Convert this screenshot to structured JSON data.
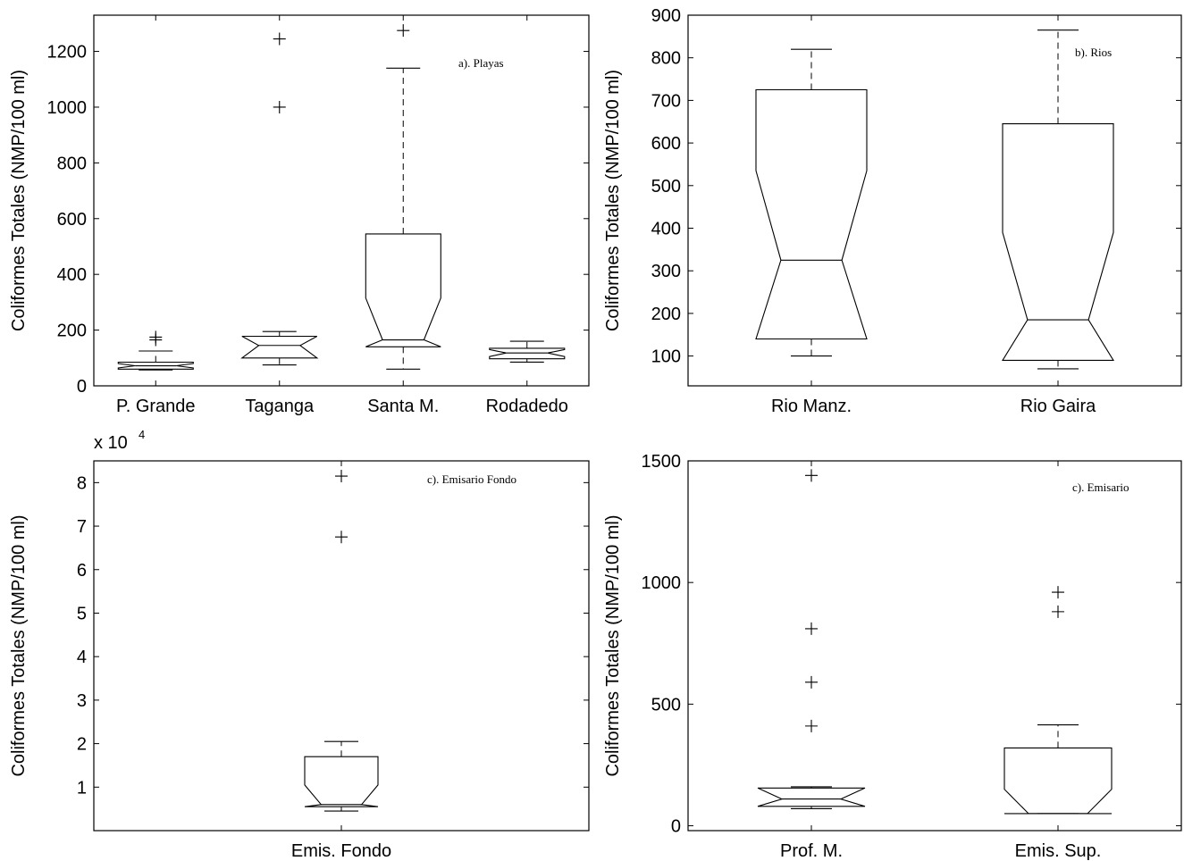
{
  "chart_data": [
    {
      "type": "box",
      "annotation": "a). Playas",
      "ylabel": "Coliformes Totales (NMP/100 ml)",
      "ylim": [
        0,
        1330
      ],
      "yticks": [
        0,
        200,
        400,
        600,
        800,
        1000,
        1200
      ],
      "ytick_labels": [
        "0",
        "200",
        "400",
        "600",
        "800",
        "1000",
        "1200"
      ],
      "multiplier": "",
      "categories": [
        "P. Grande",
        "Taganga",
        "Santa M.",
        "Rodadedo"
      ],
      "boxes": [
        {
          "q1": 60,
          "median": 72,
          "q3": 85,
          "notch_low": 64,
          "notch_high": 80,
          "whisker_low": 57,
          "whisker_high": 125,
          "outliers": [
            165,
            175
          ]
        },
        {
          "q1": 100,
          "median": 145,
          "q3": 178,
          "notch_low": 100,
          "notch_high": 178,
          "whisker_low": 75,
          "whisker_high": 195,
          "outliers": [
            1000,
            1245
          ]
        },
        {
          "q1": 140,
          "median": 165,
          "q3": 545,
          "notch_low": 140,
          "notch_high": 315,
          "whisker_low": 60,
          "whisker_high": 1140,
          "outliers": [
            1275
          ]
        },
        {
          "q1": 97,
          "median": 118,
          "q3": 135,
          "notch_low": 105,
          "notch_high": 130,
          "whisker_low": 85,
          "whisker_high": 160,
          "outliers": []
        }
      ]
    },
    {
      "type": "box",
      "annotation": "b). Rios",
      "ylabel": "Coliformes Totales (NMP/100 ml)",
      "ylim": [
        30,
        900
      ],
      "yticks": [
        100,
        200,
        300,
        400,
        500,
        600,
        700,
        800,
        900
      ],
      "ytick_labels": [
        "100",
        "200",
        "300",
        "400",
        "500",
        "600",
        "700",
        "800",
        "900"
      ],
      "multiplier": "",
      "categories": [
        "Rio Manz.",
        "Rio Gaira"
      ],
      "boxes": [
        {
          "q1": 140,
          "median": 325,
          "q3": 725,
          "notch_low": 140,
          "notch_high": 535,
          "whisker_low": 100,
          "whisker_high": 820,
          "outliers": []
        },
        {
          "q1": 90,
          "median": 185,
          "q3": 645,
          "notch_low": 90,
          "notch_high": 390,
          "whisker_low": 70,
          "whisker_high": 865,
          "outliers": []
        }
      ]
    },
    {
      "type": "box",
      "annotation": "c). Emisario Fondo",
      "ylabel": "Coliformes Totales (NMP/100 ml)",
      "ylim": [
        0,
        8.5
      ],
      "yticks": [
        1,
        2,
        3,
        4,
        5,
        6,
        7,
        8
      ],
      "ytick_labels": [
        "1",
        "2",
        "3",
        "4",
        "5",
        "6",
        "7",
        "8"
      ],
      "multiplier": "x 10",
      "multiplier_exp": "4",
      "categories": [
        "Emis. Fondo"
      ],
      "boxes": [
        {
          "q1": 0.55,
          "median": 0.6,
          "q3": 1.7,
          "notch_low": 0.55,
          "notch_high": 1.05,
          "whisker_low": 0.45,
          "whisker_high": 2.05,
          "outliers": [
            6.75,
            8.15
          ]
        }
      ]
    },
    {
      "type": "box",
      "annotation": "c). Emisario",
      "ylabel": "Coliformes Totales (NMP/100 ml)",
      "ylim": [
        -20,
        1500
      ],
      "yticks": [
        0,
        500,
        1000,
        1500
      ],
      "ytick_labels": [
        "0",
        "500",
        "1000",
        "1500"
      ],
      "multiplier": "",
      "categories": [
        "Prof. M.",
        "Emis.  Sup."
      ],
      "boxes": [
        {
          "q1": 80,
          "median": 110,
          "q3": 155,
          "notch_low": 80,
          "notch_high": 155,
          "whisker_low": 70,
          "whisker_high": 160,
          "outliers": [
            410,
            590,
            810,
            1440
          ]
        },
        {
          "q1": 50,
          "median": 50,
          "q3": 320,
          "notch_low": 50,
          "notch_high": 150,
          "whisker_low": 50,
          "whisker_high": 415,
          "outliers": [
            880,
            960
          ]
        }
      ]
    }
  ]
}
